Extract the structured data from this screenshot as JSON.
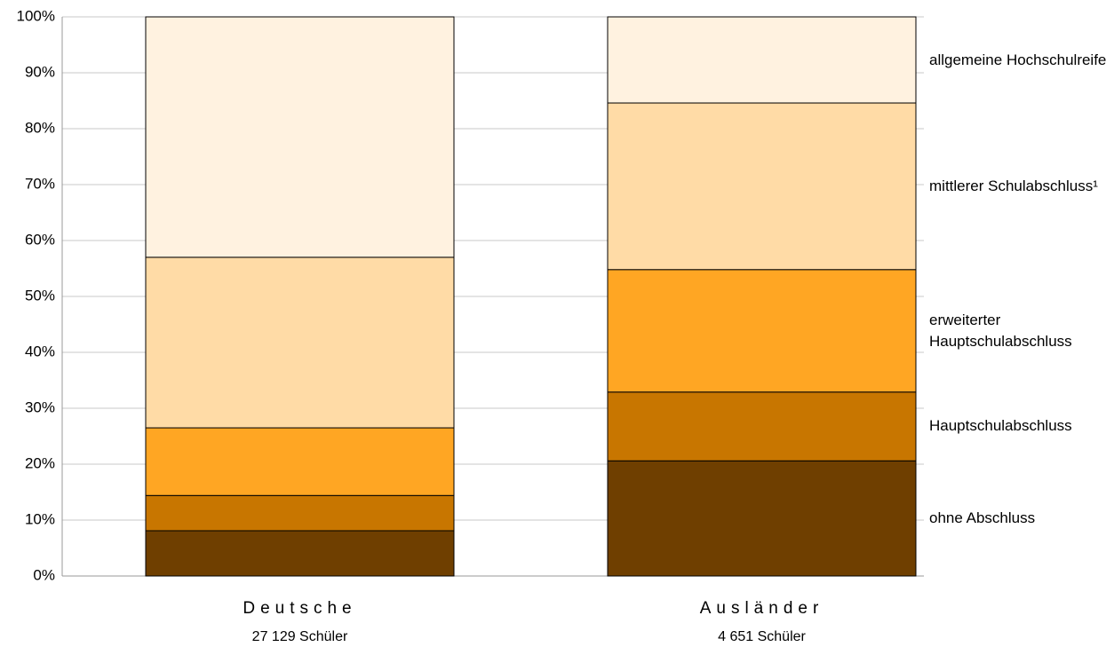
{
  "chart_data": {
    "type": "stacked_bar",
    "categories": [
      "Deutsche",
      "Ausländer"
    ],
    "category_notes": [
      "27 129  Schüler",
      "4 651 Schüler"
    ],
    "series": [
      {
        "name": "ohne Abschluss",
        "color": "#6f3f00",
        "values": [
          8.1,
          20.6
        ]
      },
      {
        "name": "Hauptschulabschluss",
        "color": "#c87600",
        "values": [
          6.3,
          12.3
        ]
      },
      {
        "name": "erweiterter Hauptschulabschluss",
        "color": "#ffa623",
        "values": [
          12.1,
          21.9
        ]
      },
      {
        "name": "mittlerer Schulabschluss¹",
        "color": "#ffdba6",
        "values": [
          30.5,
          29.8
        ]
      },
      {
        "name": "allgemeine Hochschulreife",
        "color": "#fff2e0",
        "values": [
          43.0,
          15.4
        ]
      }
    ],
    "ylim": [
      0,
      100
    ],
    "yticks": [
      {
        "value": 0,
        "label": "0%"
      },
      {
        "value": 10,
        "label": "10%"
      },
      {
        "value": 20,
        "label": "20%"
      },
      {
        "value": 30,
        "label": "30%"
      },
      {
        "value": 40,
        "label": "40%"
      },
      {
        "value": 50,
        "label": "50%"
      },
      {
        "value": 60,
        "label": "60%"
      },
      {
        "value": 70,
        "label": "70%"
      },
      {
        "value": 80,
        "label": "80%"
      },
      {
        "value": 90,
        "label": "90%"
      },
      {
        "value": 100,
        "label": "100%"
      }
    ],
    "grid": true
  }
}
